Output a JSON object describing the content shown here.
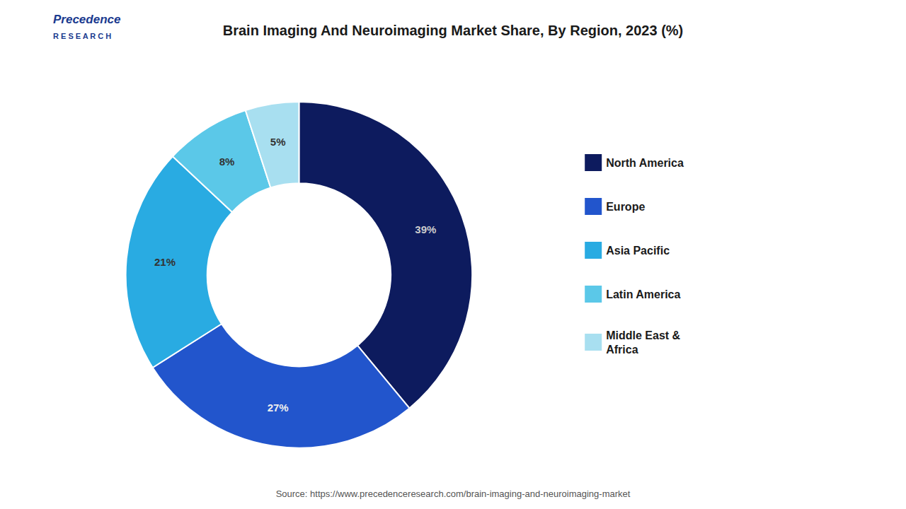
{
  "chart_data": {
    "type": "pie",
    "title": "Brain Imaging And Neuroimaging Market Share, By Region, 2023 (%)",
    "categories": [
      "North America",
      "Europe",
      "Asia Pacific",
      "Latin America",
      "Middle East &\nAfrica"
    ],
    "values": [
      39,
      27,
      21,
      8,
      5
    ],
    "value_labels": [
      "39%",
      "27%",
      "21%",
      "8%",
      "5%"
    ],
    "colors": [
      "#0d1b5e",
      "#2255cc",
      "#29abe2",
      "#5bc8e8",
      "#a8dff0"
    ],
    "data_labels": true,
    "legend": "right",
    "annotations": [
      "Precedence",
      "R E S E A R C H",
      "Source: https://www.precedenceresearch.com/brain-imaging-and-neuroimaging-market"
    ]
  }
}
